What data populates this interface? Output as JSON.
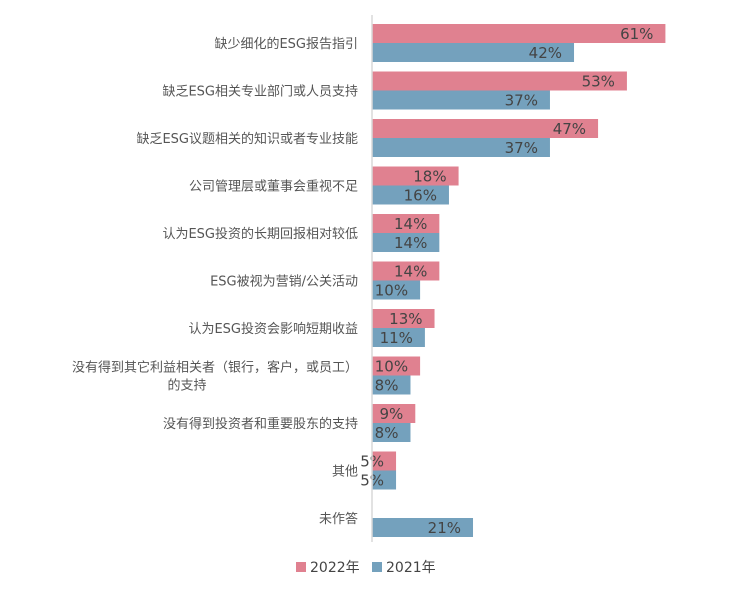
{
  "chart_data": {
    "type": "bar",
    "orientation": "horizontal",
    "categories": [
      "缺少细化的ESG报告指引",
      "缺乏ESG相关专业部门或人员支持",
      "缺乏ESG议题相关的知识或者专业技能",
      "公司管理层或董事会重视不足",
      "认为ESG投资的长期回报相对较低",
      "ESG被视为营销/公关活动",
      "认为ESG投资会影响短期收益",
      "没有得到其它利益相关者（银行，客户，或员工）\n的支持",
      "没有得到投资者和重要股东的支持",
      "其他",
      "未作答"
    ],
    "series": [
      {
        "name": "2022年",
        "color": "#e08190",
        "values": [
          61,
          53,
          47,
          18,
          14,
          14,
          13,
          10,
          9,
          5,
          null
        ]
      },
      {
        "name": "2021年",
        "color": "#74a1bd",
        "values": [
          42,
          37,
          37,
          16,
          14,
          10,
          11,
          8,
          8,
          5,
          21
        ]
      }
    ],
    "value_unit": "%",
    "data_labels": true,
    "xlim": [
      0,
      75
    ],
    "grid": false,
    "legend_position": "bottom"
  }
}
